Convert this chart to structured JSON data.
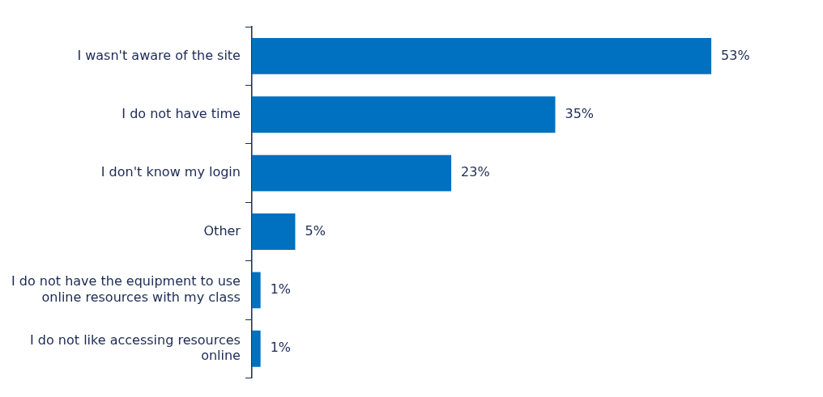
{
  "chart_data": {
    "type": "bar",
    "orientation": "horizontal",
    "categories": [
      "I wasn't aware of the site",
      "I do not have time",
      "I don't know my login",
      "Other",
      "I do not have the equipment to use online resources with my class",
      "I do not like accessing resources online"
    ],
    "values": [
      53,
      35,
      23,
      5,
      1,
      1
    ],
    "value_labels": [
      "53%",
      "35%",
      "23%",
      "5%",
      "1%",
      "1%"
    ],
    "color": "#0070c0",
    "grid": false,
    "legend": false
  }
}
